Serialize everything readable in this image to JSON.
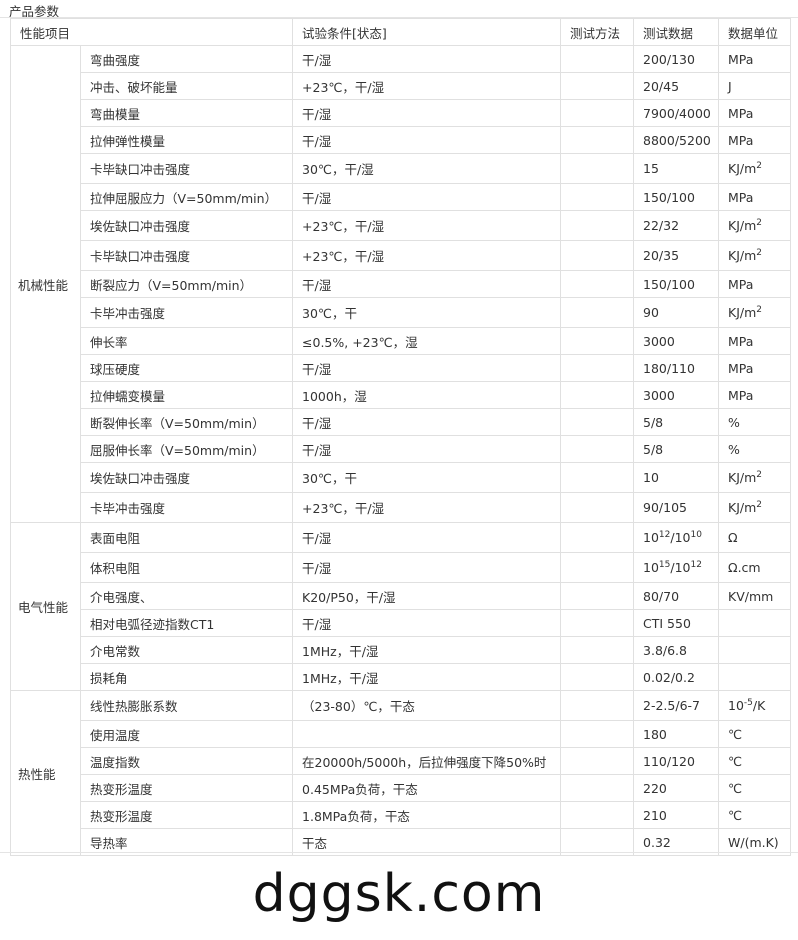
{
  "title": "产品参数",
  "headers": [
    "性能项目",
    "试验条件[状态]",
    "测试方法",
    "测试数据",
    "数据单位"
  ],
  "groups": [
    {
      "name": "机械性能",
      "rows": [
        {
          "item": "弯曲强度",
          "cond": "干/湿",
          "method": "",
          "value": "200/130",
          "unit": "MPa"
        },
        {
          "item": "冲击、破坏能量",
          "cond": "+23℃，干/湿",
          "method": "",
          "value": "20/45",
          "unit": "J"
        },
        {
          "item": "弯曲模量",
          "cond": "干/湿",
          "method": "",
          "value": "7900/4000",
          "unit": "MPa"
        },
        {
          "item": "拉伸弹性模量",
          "cond": "干/湿",
          "method": "",
          "value": "8800/5200",
          "unit": "MPa"
        },
        {
          "item": "卡毕缺口冲击强度",
          "cond": "30℃，干/湿",
          "method": "",
          "value": "15",
          "unit": "KJ/m<sup>2</sup>",
          "tall": true
        },
        {
          "item": "拉伸屈服应力（V=50mm/min）",
          "cond": "干/湿",
          "method": "",
          "value": "150/100",
          "unit": "MPa"
        },
        {
          "item": "埃佐缺口冲击强度",
          "cond": "+23℃，干/湿",
          "method": "",
          "value": "22/32",
          "unit": "KJ/m<sup>2</sup>",
          "tall": true
        },
        {
          "item": "卡毕缺口冲击强度",
          "cond": "+23℃，干/湿",
          "method": "",
          "value": "20/35",
          "unit": "KJ/m<sup>2</sup>",
          "tall": true
        },
        {
          "item": "断裂应力（V=50mm/min）",
          "cond": "干/湿",
          "method": "",
          "value": "150/100",
          "unit": "MPa"
        },
        {
          "item": "卡毕冲击强度",
          "cond": "30℃，干",
          "method": "",
          "value": "90",
          "unit": "KJ/m<sup>2</sup>",
          "tall": true
        },
        {
          "item": "伸长率",
          "cond": "≤0.5%, +23℃，湿",
          "method": "",
          "value": "3000",
          "unit": "MPa"
        },
        {
          "item": "球压硬度",
          "cond": "干/湿",
          "method": "",
          "value": "180/110",
          "unit": "MPa"
        },
        {
          "item": "拉伸蠕变模量",
          "cond": "1000h，湿",
          "method": "",
          "value": "3000",
          "unit": "MPa"
        },
        {
          "item": "断裂伸长率（V=50mm/min）",
          "cond": "干/湿",
          "method": "",
          "value": "5/8",
          "unit": "%"
        },
        {
          "item": "屈服伸长率（V=50mm/min）",
          "cond": "干/湿",
          "method": "",
          "value": "5/8",
          "unit": "%"
        },
        {
          "item": "埃佐缺口冲击强度",
          "cond": "30℃，干",
          "method": "",
          "value": "10",
          "unit": "KJ/m<sup>2</sup>",
          "tall": true
        },
        {
          "item": "卡毕冲击强度",
          "cond": "+23℃，干/湿",
          "method": "",
          "value": "90/105",
          "unit": "KJ/m<sup>2</sup>",
          "tall": true
        }
      ]
    },
    {
      "name": "电气性能",
      "rows": [
        {
          "item": "表面电阻",
          "cond": "干/湿",
          "method": "",
          "value": "10<sup>12</sup>/10<sup>10</sup>",
          "unit": "Ω",
          "tall": true
        },
        {
          "item": "体积电阻",
          "cond": "干/湿",
          "method": "",
          "value": "10<sup>15</sup>/10<sup>12</sup>",
          "unit": "Ω.cm",
          "tall": true
        },
        {
          "item": "介电强度、",
          "cond": "K20/P50，干/湿",
          "method": "",
          "value": "80/70",
          "unit": "KV/mm"
        },
        {
          "item": "相对电弧径迹指数CT1",
          "cond": "干/湿",
          "method": "",
          "value": "CTI 550",
          "unit": ""
        },
        {
          "item": "介电常数",
          "cond": "1MHz，干/湿",
          "method": "",
          "value": "3.8/6.8",
          "unit": ""
        },
        {
          "item": "损耗角",
          "cond": "1MHz，干/湿",
          "method": "",
          "value": "0.02/0.2",
          "unit": ""
        }
      ]
    },
    {
      "name": "热性能",
      "rows": [
        {
          "item": "线性热膨胀系数",
          "cond": "（23-80）℃，干态",
          "method": "",
          "value": "2-2.5/6-7",
          "unit": "10<sup>-5</sup>/K",
          "tall": true
        },
        {
          "item": "使用温度",
          "cond": "",
          "method": "",
          "value": "180",
          "unit": "℃"
        },
        {
          "item": "温度指数",
          "cond": "在20000h/5000h，后拉伸强度下降50%时",
          "method": "",
          "value": "110/120",
          "unit": "℃"
        },
        {
          "item": "热变形温度",
          "cond": "0.45MPa负荷，干态",
          "method": "",
          "value": "220",
          "unit": "℃"
        },
        {
          "item": "热变形温度",
          "cond": "1.8MPa负荷，干态",
          "method": "",
          "value": "210",
          "unit": "℃"
        },
        {
          "item": "导热率",
          "cond": "干态",
          "method": "",
          "value": "0.32",
          "unit": "W/(m.K)"
        }
      ]
    }
  ],
  "watermark": "dggsk.com"
}
